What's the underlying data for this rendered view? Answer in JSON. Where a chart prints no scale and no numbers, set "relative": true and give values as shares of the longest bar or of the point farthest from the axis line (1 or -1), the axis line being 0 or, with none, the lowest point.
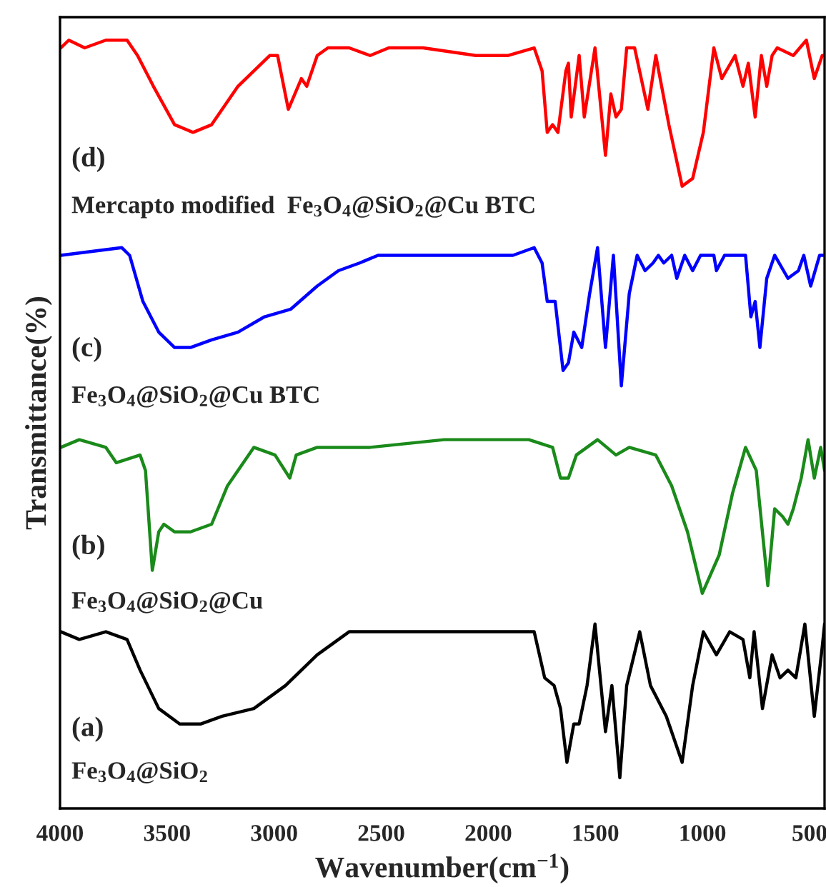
{
  "chart_data": {
    "type": "line",
    "relative": true,
    "xlabel": "Wavenumber(cm$^{−1}$)",
    "ylabel": "Transmittance(%)",
    "xlim": [
      4000,
      430
    ],
    "xticks": [
      4000,
      3500,
      3000,
      2500,
      2000,
      1500,
      1000,
      500
    ],
    "grid": false,
    "legend": false,
    "line_style": "solid",
    "annotations": [
      "(d)",
      "Mercapto modified  Fe$_{3}$O$_{4}$@SiO$_{2}$@Cu BTC",
      "(c)",
      "Fe$_{3}$O$_{4}$@SiO$_{2}$@Cu BTC",
      "(b)",
      "Fe$_{3}$O$_{4}$@SiO$_{2}$@Cu",
      "(a)",
      "Fe$_{3}$O$_{4}$@SiO$_{2}$"
    ],
    "series": [
      {
        "color": "#ff0000",
        "x": [
          3996,
          3959,
          3885,
          3786,
          3687,
          3638,
          3564,
          3465,
          3379,
          3292,
          3169,
          3021,
          2984,
          2934,
          2873,
          2848,
          2799,
          2749,
          2650,
          2552,
          2465,
          2305,
          2058,
          1910,
          1786,
          1749,
          1725,
          1700,
          1675,
          1638,
          1626,
          1613,
          1576,
          1552,
          1502,
          1453,
          1428,
          1404,
          1379,
          1354,
          1317,
          1255,
          1218,
          1157,
          1095,
          1046,
          996,
          947,
          910,
          848,
          811,
          786,
          754,
          725,
          700,
          675,
          651,
          576,
          515,
          478,
          441,
          430
        ],
        "values": [
          0.99,
          1.0,
          0.99,
          1.0,
          1.0,
          0.98,
          0.94,
          0.89,
          0.88,
          0.89,
          0.94,
          0.98,
          0.98,
          0.91,
          0.95,
          0.94,
          0.98,
          0.99,
          0.99,
          0.98,
          0.99,
          0.99,
          0.98,
          0.98,
          0.99,
          0.96,
          0.88,
          0.89,
          0.88,
          0.96,
          0.97,
          0.9,
          0.98,
          0.9,
          0.99,
          0.85,
          0.93,
          0.9,
          0.91,
          0.99,
          0.99,
          0.91,
          0.98,
          0.89,
          0.81,
          0.82,
          0.88,
          0.99,
          0.95,
          0.98,
          0.94,
          0.97,
          0.9,
          0.98,
          0.94,
          0.98,
          0.99,
          0.98,
          1.0,
          0.95,
          0.98,
          0.98
        ]
      },
      {
        "color": "#0000ff",
        "x": [
          3996,
          3712,
          3675,
          3613,
          3539,
          3465,
          3391,
          3292,
          3169,
          3045,
          2922,
          2799,
          2700,
          2601,
          2515,
          2305,
          2058,
          1885,
          1786,
          1749,
          1725,
          1688,
          1651,
          1626,
          1601,
          1564,
          1527,
          1490,
          1453,
          1416,
          1379,
          1342,
          1305,
          1268,
          1231,
          1206,
          1181,
          1144,
          1120,
          1083,
          1046,
          1009,
          947,
          935,
          897,
          799,
          774,
          754,
          732,
          700,
          663,
          601,
          552,
          527,
          495,
          453,
          430
        ],
        "values": [
          0.72,
          0.73,
          0.72,
          0.66,
          0.62,
          0.6,
          0.6,
          0.61,
          0.62,
          0.64,
          0.65,
          0.68,
          0.7,
          0.71,
          0.72,
          0.72,
          0.72,
          0.72,
          0.73,
          0.71,
          0.66,
          0.66,
          0.57,
          0.58,
          0.62,
          0.6,
          0.67,
          0.73,
          0.6,
          0.72,
          0.55,
          0.67,
          0.72,
          0.7,
          0.71,
          0.72,
          0.71,
          0.72,
          0.69,
          0.72,
          0.7,
          0.72,
          0.72,
          0.7,
          0.72,
          0.72,
          0.64,
          0.66,
          0.6,
          0.69,
          0.72,
          0.69,
          0.7,
          0.72,
          0.68,
          0.72,
          0.72
        ]
      },
      {
        "color": "#1a8a1a",
        "x": [
          3996,
          3910,
          3786,
          3737,
          3626,
          3601,
          3569,
          3539,
          3515,
          3465,
          3391,
          3292,
          3218,
          3095,
          2996,
          2927,
          2897,
          2799,
          2552,
          2206,
          1811,
          1700,
          1663,
          1626,
          1589,
          1490,
          1404,
          1342,
          1218,
          1144,
          1070,
          1001,
          922,
          860,
          799,
          749,
          695,
          663,
          626,
          601,
          576,
          539,
          507,
          478,
          448,
          430
        ],
        "values": [
          0.47,
          0.48,
          0.47,
          0.45,
          0.46,
          0.44,
          0.31,
          0.36,
          0.37,
          0.36,
          0.36,
          0.37,
          0.42,
          0.47,
          0.46,
          0.43,
          0.46,
          0.47,
          0.47,
          0.48,
          0.48,
          0.47,
          0.43,
          0.43,
          0.46,
          0.48,
          0.46,
          0.47,
          0.46,
          0.42,
          0.36,
          0.28,
          0.33,
          0.41,
          0.47,
          0.44,
          0.29,
          0.39,
          0.38,
          0.37,
          0.39,
          0.43,
          0.48,
          0.43,
          0.47,
          0.44
        ]
      },
      {
        "color": "#000000",
        "x": [
          3996,
          3910,
          3786,
          3687,
          3626,
          3539,
          3441,
          3342,
          3243,
          3095,
          2947,
          2799,
          2650,
          2552,
          2305,
          2058,
          1836,
          1786,
          1737,
          1693,
          1663,
          1633,
          1601,
          1576,
          1539,
          1502,
          1453,
          1423,
          1386,
          1354,
          1293,
          1243,
          1169,
          1095,
          1046,
          996,
          935,
          873,
          811,
          779,
          759,
          720,
          675,
          638,
          601,
          564,
          522,
          478,
          441,
          430
        ],
        "values": [
          0.23,
          0.22,
          0.23,
          0.22,
          0.18,
          0.13,
          0.11,
          0.11,
          0.12,
          0.13,
          0.16,
          0.2,
          0.23,
          0.23,
          0.23,
          0.23,
          0.23,
          0.23,
          0.17,
          0.16,
          0.13,
          0.06,
          0.11,
          0.11,
          0.16,
          0.24,
          0.1,
          0.16,
          0.04,
          0.16,
          0.23,
          0.16,
          0.12,
          0.06,
          0.16,
          0.23,
          0.2,
          0.23,
          0.22,
          0.17,
          0.23,
          0.13,
          0.2,
          0.17,
          0.18,
          0.17,
          0.24,
          0.12,
          0.21,
          0.24
        ]
      }
    ]
  }
}
